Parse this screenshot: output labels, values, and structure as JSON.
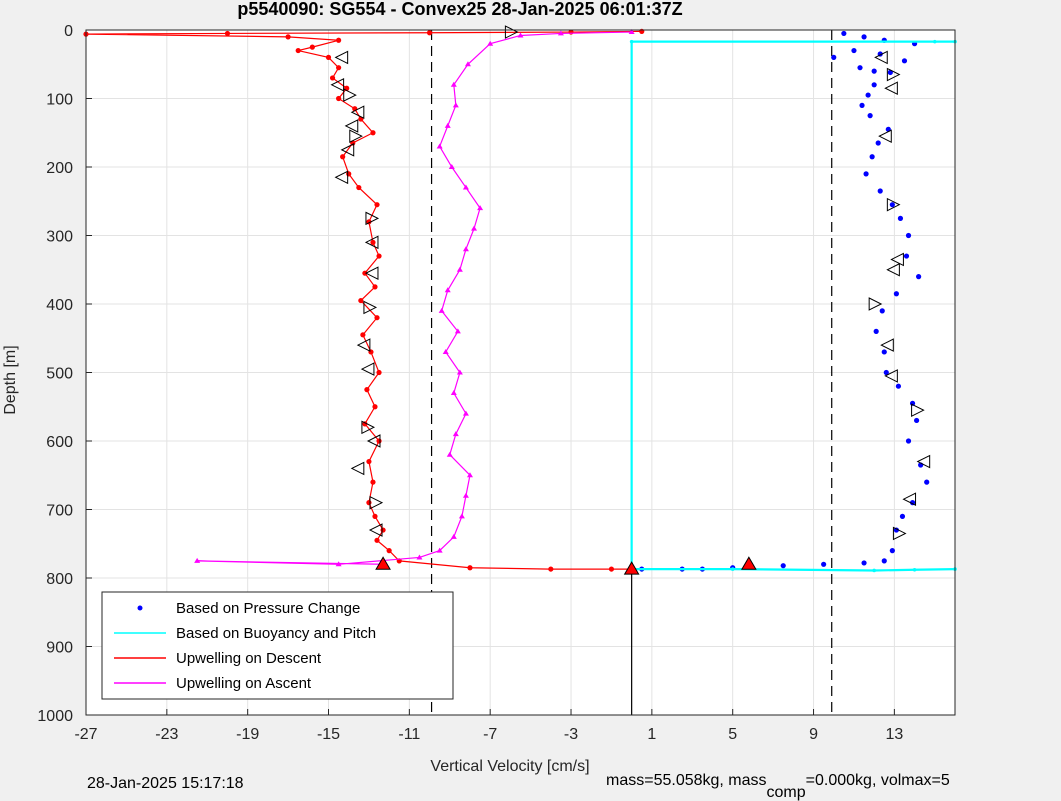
{
  "chart_data": {
    "type": "scatter",
    "title": "p5540090: SG554 - Convex25 28-Jan-2025 06:01:37Z",
    "xlabel": "Vertical Velocity [cm/s]",
    "ylabel": "Depth [m]",
    "xlim": [
      -27,
      16
    ],
    "ylim": [
      0,
      1000
    ],
    "y_reversed": true,
    "xticks": [
      "-27",
      "-23",
      "-19",
      "-15",
      "-11",
      "-7",
      "-3",
      "1",
      "5",
      "9",
      "13"
    ],
    "xtick_values": [
      -27,
      -23,
      -19,
      -15,
      -11,
      -7,
      -3,
      1,
      5,
      9,
      13
    ],
    "yticks": [
      "0",
      "100",
      "200",
      "300",
      "400",
      "500",
      "600",
      "700",
      "800",
      "900",
      "1000"
    ],
    "ytick_values": [
      0,
      100,
      200,
      300,
      400,
      500,
      600,
      700,
      800,
      900,
      1000
    ],
    "grid": true,
    "legend_position": "bottom-left",
    "legend": [
      "Based on Pressure Change",
      "Based on Buoyancy and Pitch",
      "Upwelling on Descent",
      "Upwelling on Ascent"
    ],
    "reference_lines": [
      {
        "x": -9.9,
        "style": "dashed",
        "color": "#000000"
      },
      {
        "x": 9.9,
        "style": "dashed",
        "color": "#000000"
      },
      {
        "x": 0,
        "style": "solid",
        "color": "#000000",
        "y_from": 787,
        "y_to": 1000
      }
    ],
    "series": [
      {
        "name": "Based on Pressure Change",
        "style": "points",
        "color": "#0000ff",
        "points": [
          [
            10.5,
            5
          ],
          [
            11.5,
            10
          ],
          [
            12.5,
            15
          ],
          [
            14.0,
            20
          ],
          [
            11.0,
            30
          ],
          [
            10.0,
            40
          ],
          [
            12.3,
            35
          ],
          [
            13.5,
            45
          ],
          [
            11.3,
            55
          ],
          [
            12.0,
            60
          ],
          [
            12.8,
            62
          ],
          [
            12.0,
            80
          ],
          [
            11.7,
            95
          ],
          [
            11.4,
            110
          ],
          [
            11.8,
            125
          ],
          [
            12.7,
            145
          ],
          [
            12.2,
            165
          ],
          [
            11.9,
            185
          ],
          [
            11.6,
            210
          ],
          [
            12.3,
            235
          ],
          [
            12.9,
            255
          ],
          [
            13.3,
            275
          ],
          [
            13.7,
            300
          ],
          [
            13.6,
            330
          ],
          [
            14.2,
            360
          ],
          [
            13.1,
            385
          ],
          [
            12.4,
            410
          ],
          [
            12.1,
            440
          ],
          [
            12.5,
            470
          ],
          [
            12.6,
            500
          ],
          [
            13.2,
            520
          ],
          [
            13.9,
            545
          ],
          [
            14.1,
            570
          ],
          [
            13.7,
            600
          ],
          [
            14.3,
            635
          ],
          [
            14.6,
            660
          ],
          [
            13.9,
            690
          ],
          [
            13.4,
            710
          ],
          [
            13.1,
            730
          ],
          [
            12.9,
            760
          ],
          [
            12.5,
            775
          ],
          [
            11.5,
            778
          ],
          [
            9.5,
            780
          ],
          [
            7.5,
            782
          ],
          [
            5.0,
            785
          ],
          [
            3.5,
            787
          ],
          [
            2.5,
            787
          ],
          [
            0.5,
            787
          ]
        ]
      },
      {
        "name": "Based on Buoyancy and Pitch",
        "style": "line",
        "color": "#00ffff",
        "points": [
          [
            16,
            17
          ],
          [
            15.0,
            17
          ],
          [
            0,
            17
          ],
          [
            0,
            787
          ],
          [
            5,
            787
          ],
          [
            12,
            789
          ],
          [
            14,
            788
          ],
          [
            16,
            787
          ]
        ]
      },
      {
        "name": "Upwelling on Descent",
        "style": "line-markers",
        "color": "#ff0000",
        "points": [
          [
            0.5,
            2
          ],
          [
            -3,
            3
          ],
          [
            -10,
            4
          ],
          [
            -20,
            5
          ],
          [
            -27,
            6
          ],
          [
            -17,
            10
          ],
          [
            -14.5,
            15
          ],
          [
            -15.8,
            25
          ],
          [
            -16.5,
            30
          ],
          [
            -15.0,
            40
          ],
          [
            -14.5,
            55
          ],
          [
            -14.8,
            70
          ],
          [
            -14.1,
            85
          ],
          [
            -14.5,
            100
          ],
          [
            -13.7,
            115
          ],
          [
            -13.4,
            130
          ],
          [
            -12.8,
            150
          ],
          [
            -13.8,
            165
          ],
          [
            -14.3,
            185
          ],
          [
            -14.0,
            210
          ],
          [
            -13.5,
            230
          ],
          [
            -12.6,
            255
          ],
          [
            -13.0,
            280
          ],
          [
            -12.8,
            310
          ],
          [
            -12.5,
            330
          ],
          [
            -13.2,
            355
          ],
          [
            -12.7,
            375
          ],
          [
            -13.4,
            395
          ],
          [
            -12.6,
            420
          ],
          [
            -13.3,
            445
          ],
          [
            -12.9,
            470
          ],
          [
            -12.5,
            500
          ],
          [
            -13.1,
            525
          ],
          [
            -12.7,
            550
          ],
          [
            -13.2,
            575
          ],
          [
            -12.5,
            600
          ],
          [
            -13.0,
            630
          ],
          [
            -12.8,
            660
          ],
          [
            -13.0,
            690
          ],
          [
            -12.7,
            710
          ],
          [
            -12.3,
            730
          ],
          [
            -12.6,
            745
          ],
          [
            -12.0,
            760
          ],
          [
            -11.5,
            775
          ],
          [
            -8.0,
            785
          ],
          [
            -4.0,
            787
          ],
          [
            -1.0,
            787
          ],
          [
            0,
            787
          ]
        ]
      },
      {
        "name": "Upwelling on Ascent",
        "style": "line-markers",
        "color": "#ff00ff",
        "points": [
          [
            -12.3,
            780
          ],
          [
            -21.5,
            775
          ],
          [
            -14.5,
            780
          ],
          [
            -10.5,
            770
          ],
          [
            -9.5,
            760
          ],
          [
            -8.8,
            740
          ],
          [
            -8.4,
            710
          ],
          [
            -8.2,
            680
          ],
          [
            -8.0,
            650
          ],
          [
            -9.0,
            620
          ],
          [
            -8.7,
            590
          ],
          [
            -8.2,
            560
          ],
          [
            -8.8,
            530
          ],
          [
            -8.5,
            500
          ],
          [
            -9.2,
            470
          ],
          [
            -8.6,
            440
          ],
          [
            -9.4,
            410
          ],
          [
            -9.1,
            380
          ],
          [
            -8.5,
            350
          ],
          [
            -8.2,
            320
          ],
          [
            -7.8,
            290
          ],
          [
            -7.5,
            260
          ],
          [
            -8.2,
            230
          ],
          [
            -8.9,
            200
          ],
          [
            -9.5,
            170
          ],
          [
            -9.1,
            140
          ],
          [
            -8.7,
            110
          ],
          [
            -8.8,
            80
          ],
          [
            -8.1,
            50
          ],
          [
            -7.0,
            20
          ],
          [
            -5.5,
            8
          ],
          [
            -3.5,
            5
          ],
          [
            0,
            3
          ]
        ]
      }
    ],
    "triangle_markers": {
      "color": "#ff0000",
      "points": [
        [
          -12.3,
          780
        ],
        [
          5.8,
          780
        ],
        [
          0,
          787
        ]
      ]
    },
    "direction_markers": {
      "points": [
        [
          -6.0,
          3
        ],
        [
          -14.3,
          40
        ],
        [
          -14.5,
          80
        ],
        [
          -14.0,
          95
        ],
        [
          -13.5,
          120
        ],
        [
          -13.8,
          140
        ],
        [
          -13.7,
          155
        ],
        [
          -14.0,
          175
        ],
        [
          -14.3,
          215
        ],
        [
          -12.9,
          275
        ],
        [
          -12.8,
          310
        ],
        [
          -12.8,
          355
        ],
        [
          -13.0,
          405
        ],
        [
          -13.2,
          460
        ],
        [
          -13.0,
          495
        ],
        [
          -13.1,
          580
        ],
        [
          -12.7,
          600
        ],
        [
          -13.5,
          640
        ],
        [
          -12.7,
          690
        ],
        [
          -12.6,
          730
        ],
        [
          12.4,
          40
        ],
        [
          12.9,
          65
        ],
        [
          12.9,
          85
        ],
        [
          12.6,
          155
        ],
        [
          12.9,
          255
        ],
        [
          13.2,
          335
        ],
        [
          13.0,
          350
        ],
        [
          12.0,
          400
        ],
        [
          12.7,
          460
        ],
        [
          12.9,
          505
        ],
        [
          14.1,
          555
        ],
        [
          14.5,
          630
        ],
        [
          13.8,
          685
        ],
        [
          13.2,
          735
        ]
      ]
    }
  },
  "footer": {
    "date_text": "28-Jan-2025 15:17:18",
    "mass_text": "mass=55.058kg, mass",
    "comp_sub": "comp",
    "comp_text": "=0.000kg, volmax=5"
  }
}
